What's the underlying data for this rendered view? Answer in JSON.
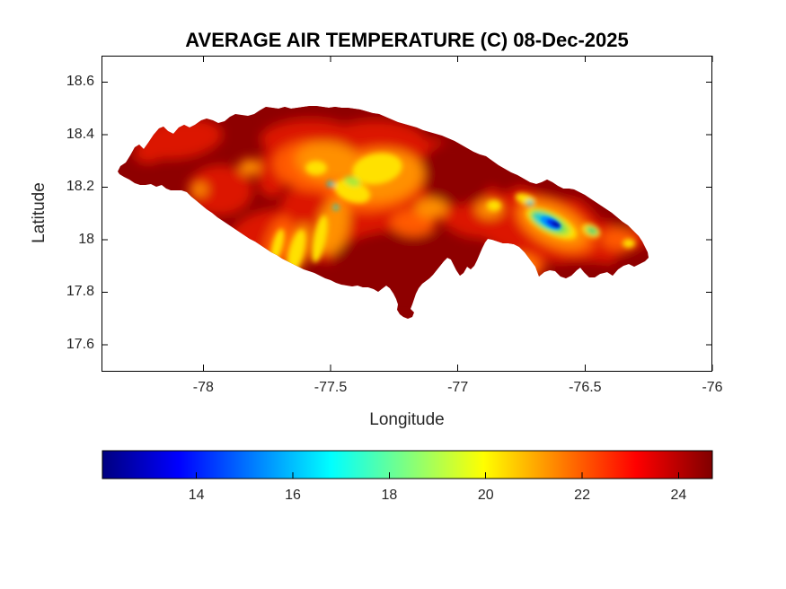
{
  "figure": {
    "title": "AVERAGE AIR TEMPERATURE (C) 08-Dec-2025"
  },
  "axes": {
    "xlabel": "Longitude",
    "ylabel": "Latitude",
    "xlim": [
      -78.4,
      -76
    ],
    "ylim": [
      17.5,
      18.7
    ],
    "x_ticks": [
      -78,
      -77.5,
      -77,
      -76.5,
      -76
    ],
    "y_ticks": [
      18.6,
      18.4,
      18.2,
      18,
      17.8,
      17.6
    ]
  },
  "colorbar": {
    "orientation": "horizontal",
    "ticks": [
      14,
      16,
      18,
      20,
      22,
      24
    ],
    "range": [
      12.05,
      24.7
    ],
    "colormap": "jet",
    "stops": [
      [
        0,
        "#000080"
      ],
      [
        0.125,
        "#0000ff"
      ],
      [
        0.375,
        "#00ffff"
      ],
      [
        0.625,
        "#ffff00"
      ],
      [
        0.875,
        "#ff0000"
      ],
      [
        1,
        "#800000"
      ]
    ]
  },
  "chart_data": {
    "type": "heatmap",
    "title": "AVERAGE AIR TEMPERATURE (C) 08-Dec-2025",
    "xlabel": "Longitude",
    "ylabel": "Latitude",
    "region": "Jamaica",
    "units": "degrees C",
    "xlim": [
      -78.4,
      -76
    ],
    "ylim": [
      17.5,
      18.7
    ],
    "color_range_c": [
      12.05,
      24.7
    ],
    "legend_position": "bottom colorbar",
    "grid": false,
    "features": [
      {
        "area": "coastal lowlands island-wide",
        "approx_temp_c": 24.5,
        "color": "dark red"
      },
      {
        "area": "north-west and south-central plains",
        "approx_temp_c": 24,
        "color": "dark red"
      },
      {
        "area": "central-western interior band",
        "approx_temp_c": 21.5,
        "color": "orange"
      },
      {
        "area": "central highland cores (~-77.5 to -77.2, 18.1-18.35)",
        "approx_temp_c": 19.5,
        "color": "yellow"
      },
      {
        "area": "south-west valley streaks (~-77.35, 17.9-18.1)",
        "approx_temp_c": 20,
        "color": "yellow"
      },
      {
        "area": "Blue Mountains flanks (~-76.7, 18.05)",
        "approx_temp_c": 17,
        "color": "green/cyan"
      },
      {
        "area": "Blue Mountains core (~-76.62, 18.05)",
        "approx_temp_c": 12.5,
        "color": "dark blue"
      },
      {
        "area": "east-tip hills (~-76.35, 18.0)",
        "approx_temp_c": 20,
        "color": "yellow/orange"
      }
    ]
  }
}
